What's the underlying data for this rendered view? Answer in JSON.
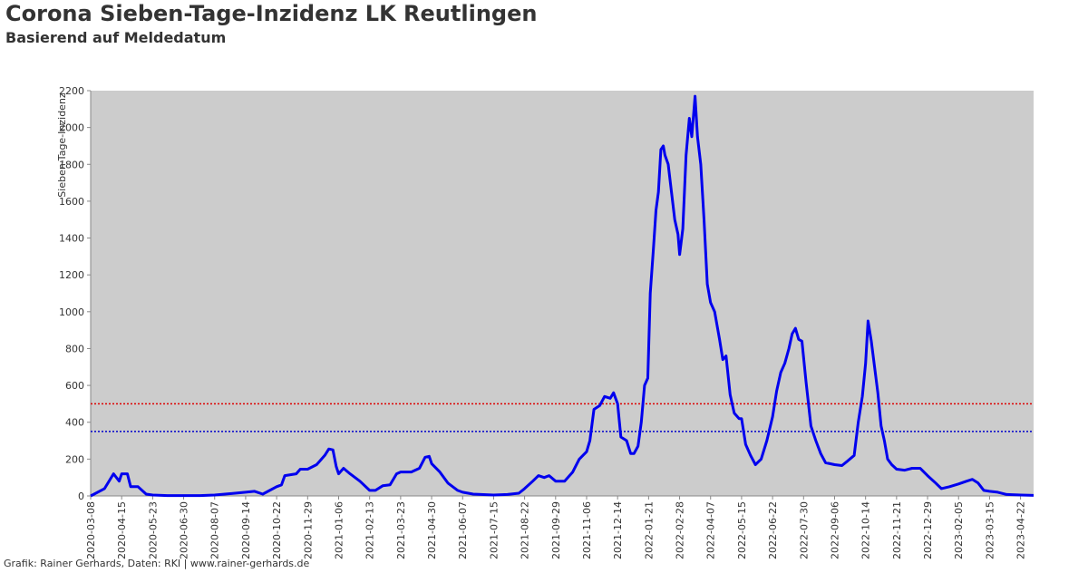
{
  "chart_data": {
    "type": "line",
    "title": "Corona Sieben-Tage-Inzidenz LK Reutlingen",
    "subtitle": "Basierend auf Meldedatum",
    "y_label": "Sieben-Tage-Inzidenz",
    "footer": "Grafik: Rainer Gerhards, Daten: RKI | www.rainer-gerhards.de",
    "color": "#0000ee",
    "background": "#cccccc",
    "reference_lines": [
      {
        "value": 500,
        "color": "#dd0000"
      },
      {
        "value": 350,
        "color": "#0000cc"
      }
    ],
    "ylim": [
      0,
      2200
    ],
    "yticks": [
      0,
      200,
      400,
      600,
      800,
      1000,
      1200,
      1400,
      1600,
      1800,
      2000,
      2200
    ],
    "xlim": [
      "2020-03-08",
      "2023-05-08"
    ],
    "xticks": [
      "2020-03-08",
      "2020-04-15",
      "2020-05-23",
      "2020-06-30",
      "2020-08-07",
      "2020-09-14",
      "2020-10-22",
      "2020-11-29",
      "2021-01-06",
      "2021-02-13",
      "2021-03-23",
      "2021-04-30",
      "2021-06-07",
      "2021-07-15",
      "2021-08-22",
      "2021-09-29",
      "2021-11-06",
      "2021-12-14",
      "2022-01-21",
      "2022-02-28",
      "2022-04-07",
      "2022-05-15",
      "2022-06-22",
      "2022-07-30",
      "2022-09-06",
      "2022-10-14",
      "2022-11-21",
      "2022-12-29",
      "2023-02-05",
      "2023-03-15",
      "2023-04-22"
    ],
    "x": [
      "2020-03-08",
      "2020-03-25",
      "2020-04-05",
      "2020-04-12",
      "2020-04-15",
      "2020-04-22",
      "2020-04-26",
      "2020-05-05",
      "2020-05-15",
      "2020-05-23",
      "2020-06-10",
      "2020-07-20",
      "2020-08-07",
      "2020-09-01",
      "2020-09-14",
      "2020-09-25",
      "2020-10-05",
      "2020-10-22",
      "2020-10-28",
      "2020-11-01",
      "2020-11-15",
      "2020-11-20",
      "2020-11-29",
      "2020-12-10",
      "2020-12-20",
      "2020-12-25",
      "2020-12-30",
      "2021-01-03",
      "2021-01-06",
      "2021-01-12",
      "2021-01-20",
      "2021-02-01",
      "2021-02-13",
      "2021-02-20",
      "2021-03-01",
      "2021-03-10",
      "2021-03-18",
      "2021-03-23",
      "2021-04-05",
      "2021-04-15",
      "2021-04-22",
      "2021-04-27",
      "2021-04-30",
      "2021-05-10",
      "2021-05-20",
      "2021-06-01",
      "2021-06-07",
      "2021-06-20",
      "2021-07-15",
      "2021-08-01",
      "2021-08-15",
      "2021-08-22",
      "2021-09-01",
      "2021-09-08",
      "2021-09-15",
      "2021-09-21",
      "2021-09-29",
      "2021-10-10",
      "2021-10-20",
      "2021-10-28",
      "2021-11-06",
      "2021-11-10",
      "2021-11-15",
      "2021-11-22",
      "2021-11-28",
      "2021-12-05",
      "2021-12-09",
      "2021-12-14",
      "2021-12-18",
      "2021-12-25",
      "2021-12-30",
      "2022-01-03",
      "2022-01-08",
      "2022-01-12",
      "2022-01-16",
      "2022-01-20",
      "2022-01-23",
      "2022-01-27",
      "2022-01-30",
      "2022-02-02",
      "2022-02-05",
      "2022-02-08",
      "2022-02-10",
      "2022-02-14",
      "2022-02-18",
      "2022-02-22",
      "2022-02-26",
      "2022-02-28",
      "2022-03-04",
      "2022-03-08",
      "2022-03-12",
      "2022-03-15",
      "2022-03-19",
      "2022-03-22",
      "2022-03-26",
      "2022-03-30",
      "2022-04-03",
      "2022-04-07",
      "2022-04-12",
      "2022-04-18",
      "2022-04-22",
      "2022-04-26",
      "2022-05-01",
      "2022-05-06",
      "2022-05-12",
      "2022-05-15",
      "2022-05-20",
      "2022-05-26",
      "2022-06-01",
      "2022-06-08",
      "2022-06-15",
      "2022-06-22",
      "2022-06-27",
      "2022-07-02",
      "2022-07-07",
      "2022-07-12",
      "2022-07-16",
      "2022-07-20",
      "2022-07-24",
      "2022-07-28",
      "2022-08-02",
      "2022-08-08",
      "2022-08-14",
      "2022-08-20",
      "2022-08-26",
      "2022-09-06",
      "2022-09-15",
      "2022-09-22",
      "2022-09-30",
      "2022-10-05",
      "2022-10-10",
      "2022-10-14",
      "2022-10-17",
      "2022-10-21",
      "2022-10-25",
      "2022-10-29",
      "2022-11-02",
      "2022-11-06",
      "2022-11-10",
      "2022-11-15",
      "2022-11-21",
      "2022-12-01",
      "2022-12-10",
      "2022-12-20",
      "2022-12-29",
      "2023-01-08",
      "2023-01-15",
      "2023-01-25",
      "2023-02-05",
      "2023-02-15",
      "2023-02-22",
      "2023-03-01",
      "2023-03-08",
      "2023-03-15",
      "2023-03-25",
      "2023-04-05",
      "2023-04-22",
      "2023-05-08"
    ],
    "values": [
      0,
      40,
      120,
      80,
      120,
      120,
      50,
      50,
      10,
      5,
      2,
      2,
      5,
      15,
      20,
      25,
      10,
      50,
      60,
      110,
      120,
      145,
      145,
      170,
      220,
      255,
      250,
      160,
      120,
      150,
      120,
      80,
      30,
      30,
      55,
      60,
      120,
      130,
      130,
      150,
      210,
      215,
      175,
      130,
      70,
      30,
      20,
      10,
      5,
      8,
      15,
      40,
      80,
      110,
      100,
      110,
      80,
      80,
      130,
      200,
      240,
      300,
      470,
      490,
      540,
      530,
      560,
      500,
      320,
      300,
      230,
      230,
      270,
      400,
      600,
      640,
      1100,
      1350,
      1550,
      1650,
      1880,
      1900,
      1850,
      1800,
      1650,
      1500,
      1420,
      1310,
      1450,
      1850,
      2050,
      1950,
      2170,
      1950,
      1800,
      1500,
      1150,
      1050,
      1000,
      850,
      740,
      760,
      550,
      450,
      420,
      420,
      280,
      220,
      170,
      200,
      300,
      430,
      570,
      670,
      720,
      800,
      880,
      910,
      850,
      840,
      620,
      380,
      300,
      230,
      180,
      170,
      165,
      190,
      220,
      400,
      540,
      720,
      950,
      840,
      700,
      560,
      380,
      300,
      200,
      170,
      145,
      140,
      150,
      150,
      110,
      70,
      40,
      50,
      65,
      80,
      90,
      70,
      30,
      25,
      20,
      8,
      5,
      3
    ]
  }
}
